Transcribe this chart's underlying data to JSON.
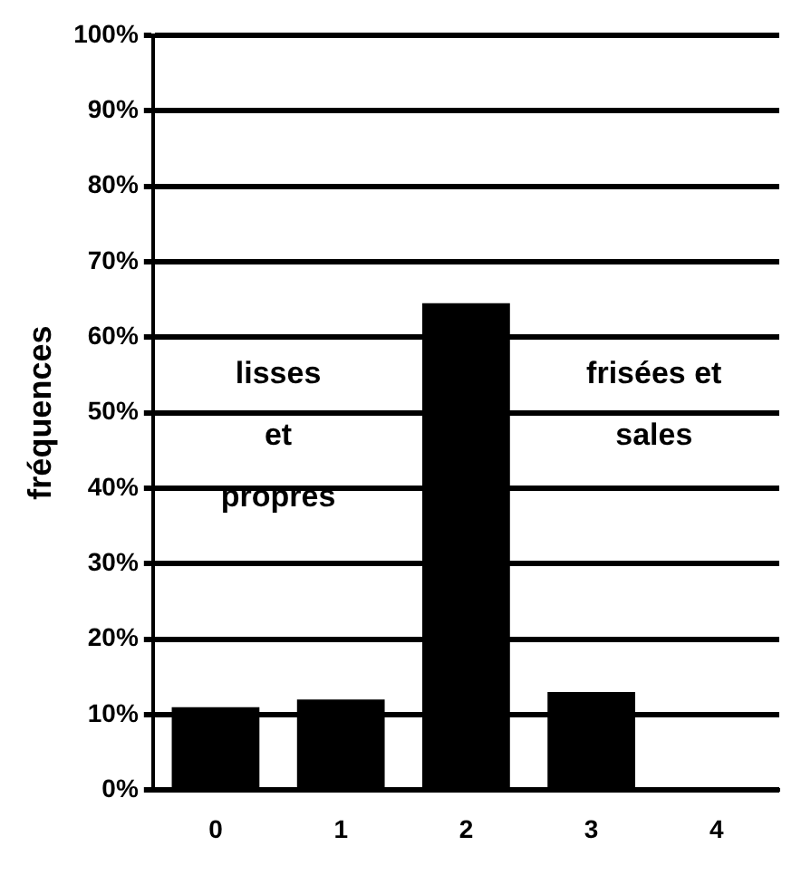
{
  "chart_data": {
    "type": "bar",
    "ylabel": "fréquences",
    "categories": [
      "0",
      "1",
      "2",
      "3",
      "4"
    ],
    "values": [
      11,
      12,
      64.5,
      13,
      0
    ],
    "color": "#000000",
    "ylim": [
      0,
      100
    ],
    "yticks": [
      {
        "value": 0,
        "label": "0%"
      },
      {
        "value": 10,
        "label": "10%"
      },
      {
        "value": 20,
        "label": "20%"
      },
      {
        "value": 30,
        "label": "30%"
      },
      {
        "value": 40,
        "label": "40%"
      },
      {
        "value": 50,
        "label": "50%"
      },
      {
        "value": 60,
        "label": "60%"
      },
      {
        "value": 70,
        "label": "70%"
      },
      {
        "value": 80,
        "label": "80%"
      },
      {
        "value": 90,
        "label": "90%"
      },
      {
        "value": 100,
        "label": "100%"
      }
    ],
    "grid": "y",
    "legend": false,
    "annotations": [
      "lisses\net\npropres",
      "frisées et\nsales"
    ]
  }
}
